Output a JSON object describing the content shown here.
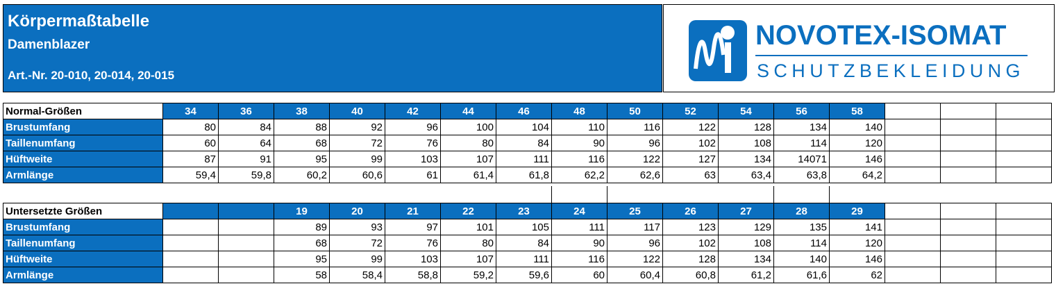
{
  "header": {
    "title": "Körpermaßtabelle",
    "subtitle": "Damenblazer",
    "article": "Art.-Nr. 20-010, 20-014, 20-015"
  },
  "logo": {
    "brand": "NOVOTEX-ISOMAT",
    "tagline": "SCHUTZBEKLEIDUNG"
  },
  "colors": {
    "accent": "#0b6fbf"
  },
  "normal": {
    "label": "Normal-Größen",
    "sizes": [
      "34",
      "36",
      "38",
      "40",
      "42",
      "44",
      "46",
      "48",
      "50",
      "52",
      "54",
      "56",
      "58",
      "",
      "",
      ""
    ],
    "rows": [
      {
        "label": "Brustumfang",
        "values": [
          "80",
          "84",
          "88",
          "92",
          "96",
          "100",
          "104",
          "110",
          "116",
          "122",
          "128",
          "134",
          "140",
          "",
          "",
          ""
        ]
      },
      {
        "label": "Taillenumfang",
        "values": [
          "60",
          "64",
          "68",
          "72",
          "76",
          "80",
          "84",
          "90",
          "96",
          "102",
          "108",
          "114",
          "120",
          "",
          "",
          ""
        ]
      },
      {
        "label": "Hüftweite",
        "values": [
          "87",
          "91",
          "95",
          "99",
          "103",
          "107",
          "111",
          "116",
          "122",
          "127",
          "134",
          "14071",
          "146",
          "",
          "",
          ""
        ]
      },
      {
        "label": "Armlänge",
        "values": [
          "59,4",
          "59,8",
          "60,2",
          "60,6",
          "61",
          "61,4",
          "61,8",
          "62,2",
          "62,6",
          "63",
          "63,4",
          "63,8",
          "64,2",
          "",
          "",
          ""
        ]
      }
    ]
  },
  "short": {
    "label": "Untersetzte Größen",
    "sizes": [
      "",
      "",
      "19",
      "20",
      "21",
      "22",
      "23",
      "24",
      "25",
      "26",
      "27",
      "28",
      "29",
      "",
      "",
      ""
    ],
    "rows": [
      {
        "label": "Brustumfang",
        "values": [
          "",
          "",
          "89",
          "93",
          "97",
          "101",
          "105",
          "111",
          "117",
          "123",
          "129",
          "135",
          "141",
          "",
          "",
          ""
        ]
      },
      {
        "label": "Taillenumfang",
        "values": [
          "",
          "",
          "68",
          "72",
          "76",
          "80",
          "84",
          "90",
          "96",
          "102",
          "108",
          "114",
          "120",
          "",
          "",
          ""
        ]
      },
      {
        "label": "Hüftweite",
        "values": [
          "",
          "",
          "95",
          "99",
          "103",
          "107",
          "111",
          "116",
          "122",
          "128",
          "134",
          "140",
          "146",
          "",
          "",
          ""
        ]
      },
      {
        "label": "Armlänge",
        "values": [
          "",
          "",
          "58",
          "58,4",
          "58,8",
          "59,2",
          "59,6",
          "60",
          "60,4",
          "60,8",
          "61,2",
          "61,6",
          "62",
          "",
          "",
          ""
        ]
      }
    ]
  }
}
